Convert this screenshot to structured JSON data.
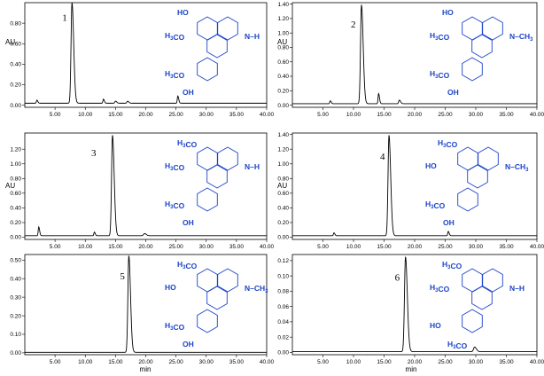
{
  "figure": {
    "x_axis_title": "min",
    "y_axis_title": "AU"
  },
  "chart_data": [
    {
      "type": "line",
      "peak_label": "1",
      "xlabel": "min",
      "ylabel": "AU",
      "xlim": [
        0,
        40
      ],
      "ylim": [
        -0.02,
        1.0
      ],
      "xticks": [
        "5.00",
        "10.00",
        "15.00",
        "20.00",
        "25.00",
        "30.00",
        "35.00",
        "40.00"
      ],
      "yticks": [
        "0.00",
        "0.20",
        "0.40",
        "0.60",
        "0.80"
      ],
      "baseline": 0.02,
      "peaks": [
        [
          2.0,
          0.03,
          0.15
        ],
        [
          7.8,
          0.98,
          0.28
        ],
        [
          13.0,
          0.04,
          0.15
        ],
        [
          15.0,
          0.02,
          0.2
        ],
        [
          17.0,
          0.02,
          0.2
        ],
        [
          25.3,
          0.07,
          0.15
        ]
      ],
      "substituents": {
        "top": "HO",
        "mid": "H3CO",
        "n": "N–H",
        "ring_a": "H3CO",
        "ring_b": "OH"
      }
    },
    {
      "type": "line",
      "peak_label": "2",
      "xlabel": "min",
      "ylabel": "AU",
      "xlim": [
        0,
        40
      ],
      "ylim": [
        -0.03,
        1.42
      ],
      "xticks": [
        "5.00",
        "10.00",
        "15.00",
        "20.00",
        "25.00",
        "30.00",
        "35.00",
        "40.00"
      ],
      "yticks": [
        "0.00",
        "0.20",
        "0.40",
        "0.60",
        "0.80",
        "1.00",
        "1.20",
        "1.40"
      ],
      "baseline": 0.02,
      "peaks": [
        [
          6.2,
          0.04,
          0.15
        ],
        [
          11.3,
          1.37,
          0.28
        ],
        [
          14.1,
          0.14,
          0.15
        ],
        [
          17.5,
          0.05,
          0.2
        ]
      ],
      "substituents": {
        "top": "HO",
        "mid": "H3CO",
        "n": "N–CH3",
        "ring_a": "H3CO",
        "ring_b": "OH"
      }
    },
    {
      "type": "line",
      "peak_label": "3",
      "xlabel": "min",
      "ylabel": "AU",
      "xlim": [
        0,
        40
      ],
      "ylim": [
        -0.03,
        1.42
      ],
      "xticks": [
        "5.00",
        "10.00",
        "15.00",
        "20.00",
        "25.00",
        "30.00",
        "35.00",
        "40.00"
      ],
      "yticks": [
        "0.00",
        "0.20",
        "0.40",
        "0.60",
        "0.80",
        "1.00",
        "1.20"
      ],
      "baseline": 0.02,
      "peaks": [
        [
          2.3,
          0.12,
          0.15
        ],
        [
          11.5,
          0.05,
          0.15
        ],
        [
          14.5,
          1.37,
          0.28
        ],
        [
          19.8,
          0.03,
          0.3
        ]
      ],
      "substituents": {
        "top": "H3CO",
        "mid": "H3CO",
        "n": "N–H",
        "ring_a": "H3CO",
        "ring_b": "OH"
      }
    },
    {
      "type": "line",
      "peak_label": "4",
      "xlabel": "min",
      "ylabel": "AU",
      "xlim": [
        0,
        40
      ],
      "ylim": [
        -0.03,
        1.42
      ],
      "xticks": [
        "5.00",
        "10.00",
        "15.00",
        "20.00",
        "25.00",
        "30.00",
        "35.00",
        "40.00"
      ],
      "yticks": [
        "0.00",
        "0.20",
        "0.40",
        "0.60",
        "0.80",
        "1.00",
        "1.20",
        "1.40"
      ],
      "baseline": 0.02,
      "peaks": [
        [
          6.8,
          0.04,
          0.15
        ],
        [
          15.8,
          1.37,
          0.28
        ],
        [
          25.5,
          0.06,
          0.15
        ]
      ],
      "substituents": {
        "top": "H3CO",
        "mid": "HO",
        "n": "N–CH3",
        "ring_a": "H3CO",
        "ring_b": "OH"
      }
    },
    {
      "type": "line",
      "peak_label": "5",
      "xlabel": "min",
      "ylabel": "AU",
      "xlim": [
        0,
        40
      ],
      "ylim": [
        -0.01,
        0.53
      ],
      "xticks": [
        "5.00",
        "10.00",
        "15.00",
        "20.00",
        "25.00",
        "30.00",
        "35.00",
        "40.00"
      ],
      "yticks": [
        "0.00",
        "0.10",
        "0.20",
        "0.30",
        "0.40",
        "0.50"
      ],
      "baseline": 0.003,
      "peaks": [
        [
          17.2,
          0.52,
          0.28
        ]
      ],
      "substituents": {
        "top": "H3CO",
        "mid": "HO",
        "n": "N–CH3",
        "ring_a": "H3CO",
        "ring_b": "OH"
      }
    },
    {
      "type": "line",
      "peak_label": "6",
      "xlabel": "min",
      "ylabel": "AU",
      "xlim": [
        0,
        40
      ],
      "ylim": [
        -0.003,
        0.128
      ],
      "xticks": [
        "5.00",
        "10.00",
        "15.00",
        "20.00",
        "25.00",
        "30.00",
        "35.00",
        "40.00"
      ],
      "yticks": [
        "0.00",
        "0.02",
        "0.04",
        "0.06",
        "0.08",
        "0.10",
        "0.12"
      ],
      "baseline": 0.001,
      "peaks": [
        [
          18.5,
          0.124,
          0.3
        ],
        [
          29.8,
          0.006,
          0.3
        ]
      ],
      "substituents": {
        "top": "H3CO",
        "mid": "H3CO",
        "n": "N–H",
        "ring_a": "HO",
        "ring_b": "H3CO"
      }
    }
  ]
}
